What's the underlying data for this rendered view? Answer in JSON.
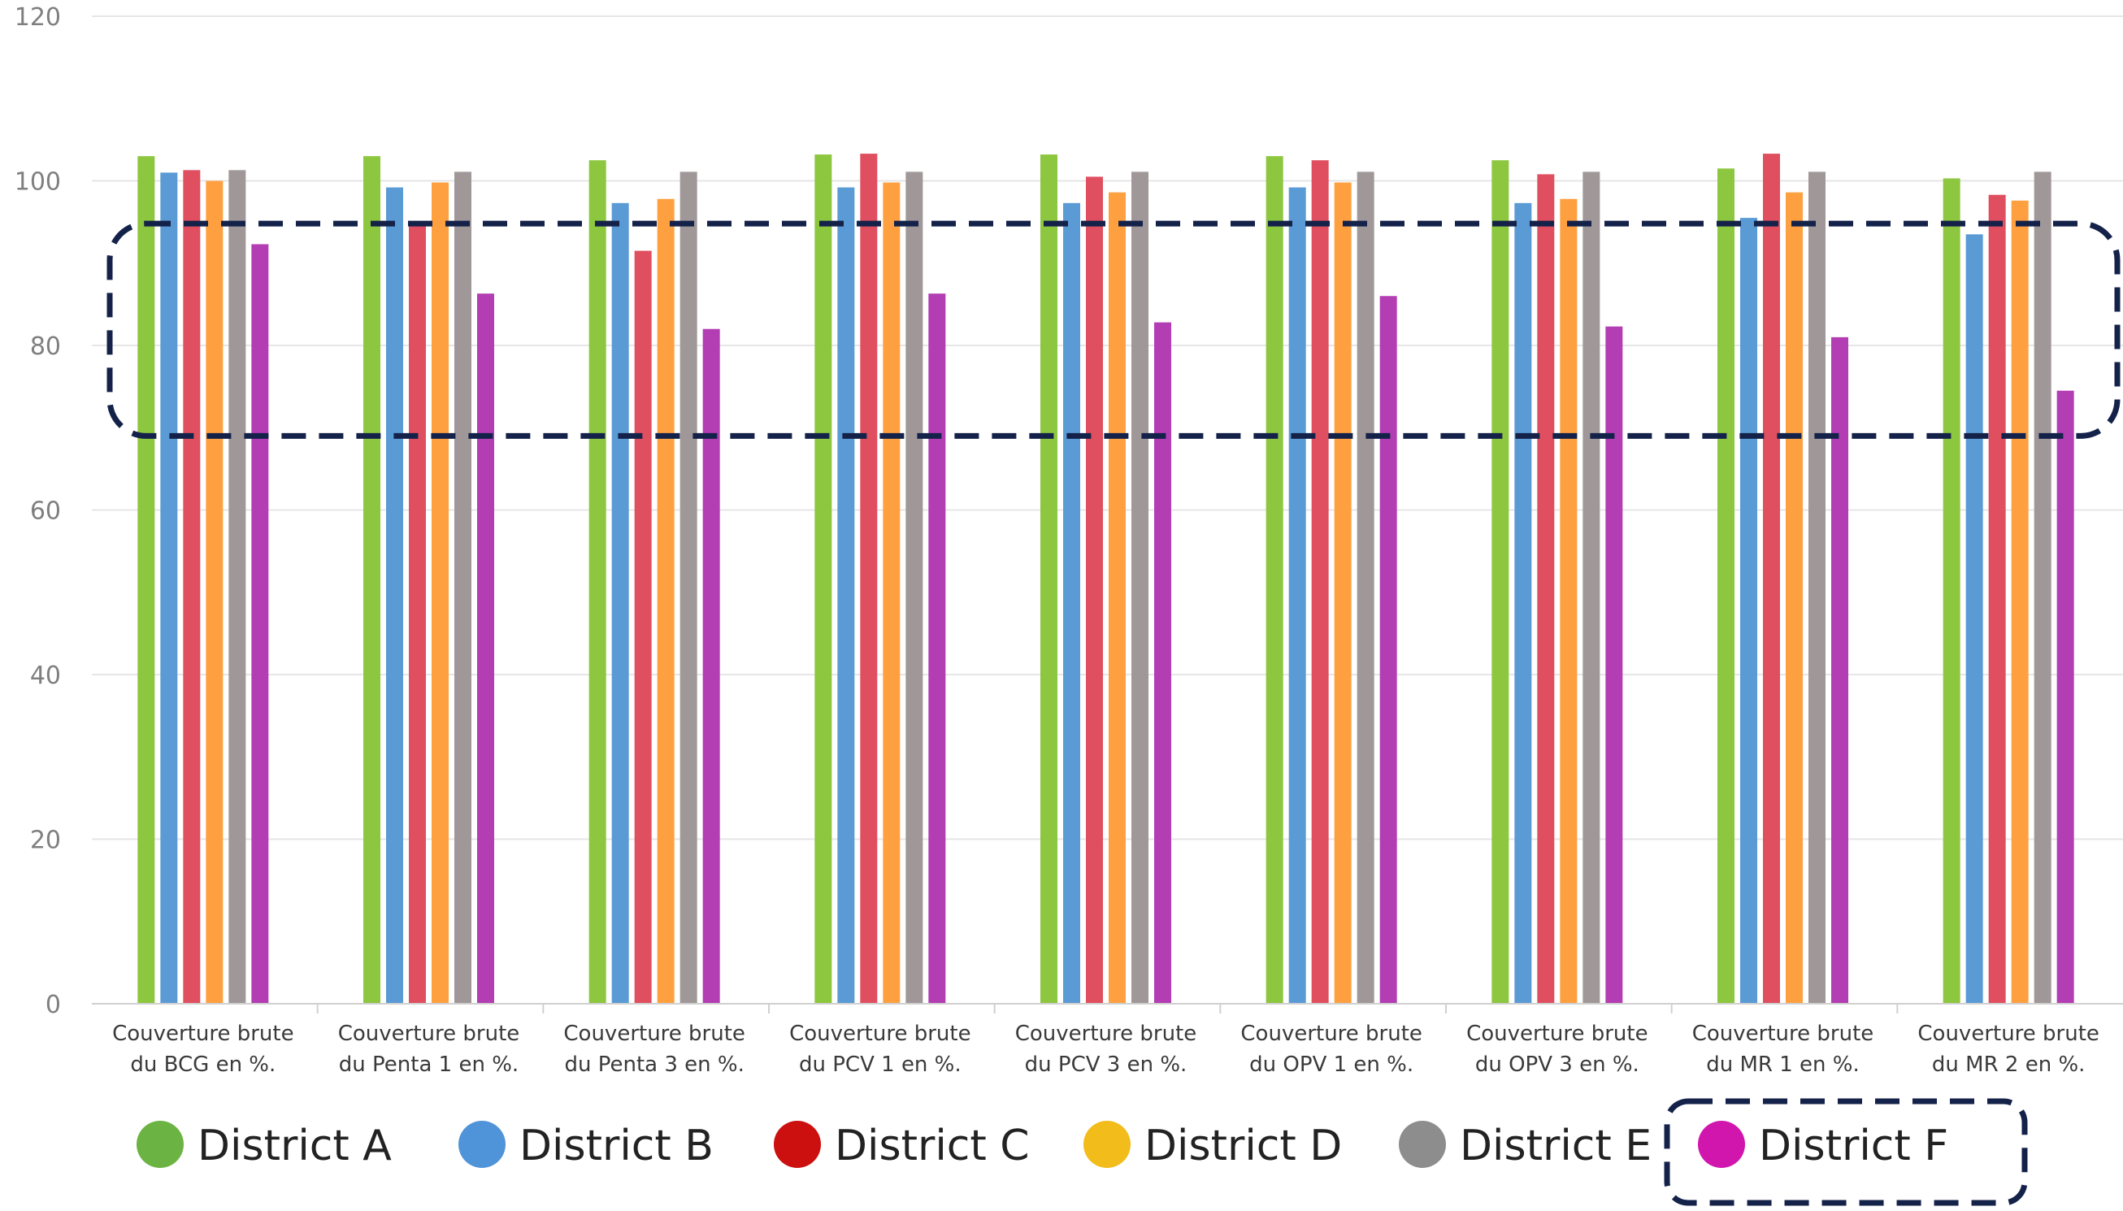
{
  "chart_data": {
    "type": "bar",
    "title": "",
    "xlabel": "",
    "ylabel": "",
    "ylim": [
      0,
      120
    ],
    "yticks": [
      0,
      20,
      40,
      60,
      80,
      100,
      120
    ],
    "grid": true,
    "legend_position": "bottom",
    "categories": [
      [
        "Couverture brute",
        "du BCG en %."
      ],
      [
        "Couverture brute",
        "du Penta 1 en %."
      ],
      [
        "Couverture brute",
        "du Penta 3 en %."
      ],
      [
        "Couverture brute",
        "du PCV 1 en %."
      ],
      [
        "Couverture brute",
        "du PCV 3 en %."
      ],
      [
        "Couverture brute",
        "du OPV 1 en %."
      ],
      [
        "Couverture brute",
        "du OPV 3 en %."
      ],
      [
        "Couverture brute",
        "du MR 1 en %."
      ],
      [
        "Couverture brute",
        "du MR 2 en %."
      ]
    ],
    "series": [
      {
        "name": "District A",
        "color": "#8dc63f",
        "values": [
          103,
          103,
          102.5,
          103.2,
          103.2,
          103,
          102.5,
          101.5,
          100.3
        ]
      },
      {
        "name": "District B",
        "color": "#5b9bd5",
        "values": [
          101,
          99.2,
          97.3,
          99.2,
          97.3,
          99.2,
          97.3,
          95.5,
          93.5
        ]
      },
      {
        "name": "District C",
        "color": "#e04f5f",
        "values": [
          101.3,
          94.5,
          91.5,
          103.3,
          100.5,
          102.5,
          100.8,
          103.3,
          98.3
        ]
      },
      {
        "name": "District D",
        "color": "#ffa040",
        "values": [
          100,
          99.8,
          97.8,
          99.8,
          98.6,
          99.8,
          97.8,
          98.6,
          97.6
        ]
      },
      {
        "name": "District E",
        "color": "#a09898",
        "values": [
          101.3,
          101.1,
          101.1,
          101.1,
          101.1,
          101.1,
          101.1,
          101.1,
          101.1
        ]
      },
      {
        "name": "District F",
        "color": "#b33db3",
        "values": [
          92.3,
          86.3,
          82,
          86.3,
          82.8,
          86,
          82.3,
          81,
          74.5
        ]
      }
    ],
    "highlight_band": [
      69,
      95
    ],
    "highlight_series": "District F",
    "legend_marker_colors": [
      "#6bb342",
      "#4f94d8",
      "#cc0f0f",
      "#f2bc1b",
      "#8d8d8d",
      "#d116ad"
    ],
    "highlight_color": "#14224a"
  }
}
